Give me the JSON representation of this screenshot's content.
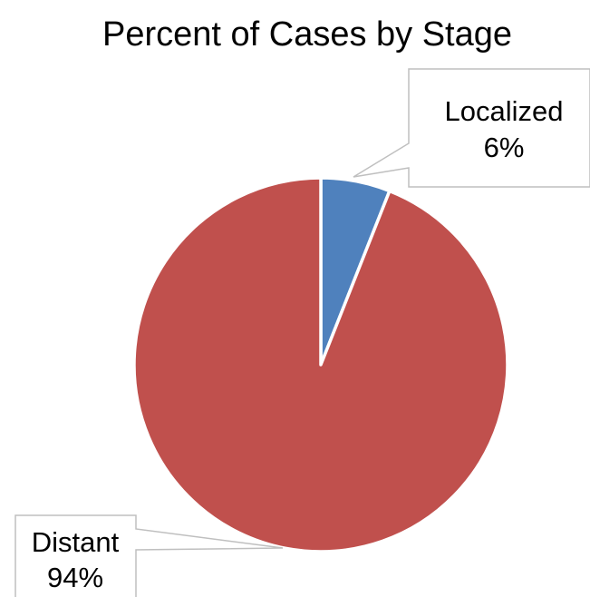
{
  "chart_data": {
    "type": "pie",
    "title": "Percent of Cases by Stage",
    "categories": [
      "Localized",
      "Distant"
    ],
    "values": [
      6,
      94
    ],
    "value_labels": [
      "6%",
      "94%"
    ],
    "colors": [
      "#4f81bd",
      "#c0504d"
    ],
    "start_angle": "12 o'clock",
    "direction": "clockwise",
    "legend": "none",
    "data_labels": "callouts"
  }
}
